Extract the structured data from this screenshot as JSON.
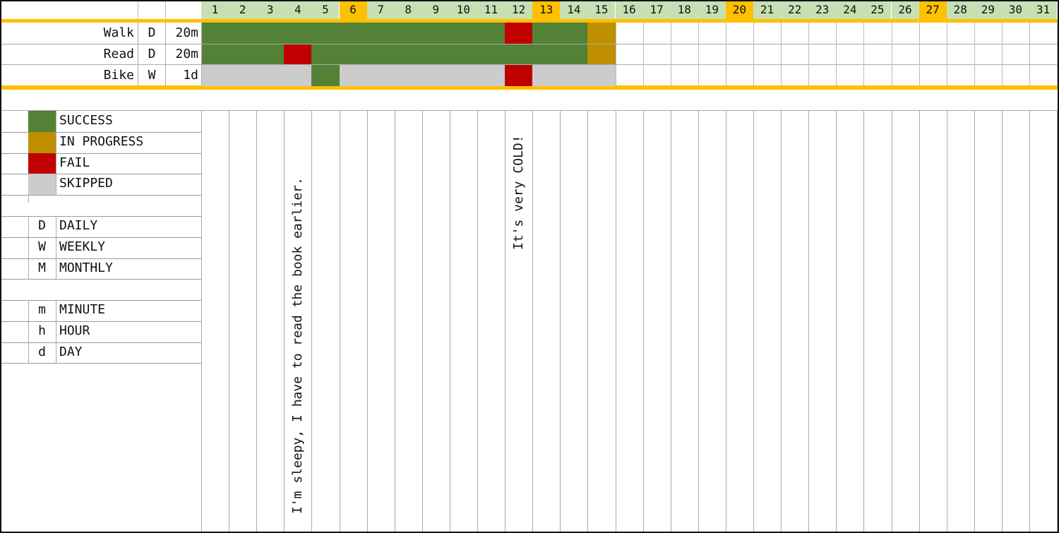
{
  "days": [
    "1",
    "2",
    "3",
    "4",
    "5",
    "6",
    "7",
    "8",
    "9",
    "10",
    "11",
    "12",
    "13",
    "14",
    "15",
    "16",
    "17",
    "18",
    "19",
    "20",
    "21",
    "22",
    "23",
    "24",
    "25",
    "26",
    "27",
    "28",
    "29",
    "30",
    "31"
  ],
  "highlight_days": [
    "6",
    "13",
    "20",
    "27"
  ],
  "colors": {
    "success": "#538135",
    "in_progress": "#bf8f00",
    "fail": "#c00000",
    "skipped": "#cccccc",
    "day_header": "#c6e0b4",
    "day_highlight": "#ffc000",
    "accent_line": "#ffc000"
  },
  "habits": [
    {
      "name": "Walk",
      "freq": "D",
      "goal": "20m",
      "status": [
        "S",
        "S",
        "S",
        "S",
        "S",
        "S",
        "S",
        "S",
        "S",
        "S",
        "S",
        "F",
        "S",
        "S",
        "P",
        "",
        "",
        "",
        "",
        "",
        "",
        "",
        "",
        "",
        "",
        "",
        "",
        "",
        "",
        "",
        ""
      ]
    },
    {
      "name": "Read",
      "freq": "D",
      "goal": "20m",
      "status": [
        "S",
        "S",
        "S",
        "F",
        "S",
        "S",
        "S",
        "S",
        "S",
        "S",
        "S",
        "S",
        "S",
        "S",
        "P",
        "",
        "",
        "",
        "",
        "",
        "",
        "",
        "",
        "",
        "",
        "",
        "",
        "",
        "",
        "",
        ""
      ]
    },
    {
      "name": "Bike",
      "freq": "W",
      "goal": "1d",
      "status": [
        "K",
        "K",
        "K",
        "K",
        "S",
        "K",
        "K",
        "K",
        "K",
        "K",
        "K",
        "F",
        "K",
        "K",
        "K",
        "",
        "",
        "",
        "",
        "",
        "",
        "",
        "",
        "",
        "",
        "",
        "",
        "",
        "",
        "",
        ""
      ]
    }
  ],
  "legend": {
    "status": [
      {
        "key": "success",
        "label": "SUCCESS"
      },
      {
        "key": "in_progress",
        "label": "IN PROGRESS"
      },
      {
        "key": "fail",
        "label": "FAIL"
      },
      {
        "key": "skipped",
        "label": "SKIPPED"
      }
    ],
    "frequency": [
      {
        "code": "D",
        "label": "DAILY"
      },
      {
        "code": "W",
        "label": "WEEKLY"
      },
      {
        "code": "M",
        "label": "MONTHLY"
      }
    ],
    "units": [
      {
        "code": "m",
        "label": "MINUTE"
      },
      {
        "code": "h",
        "label": "HOUR"
      },
      {
        "code": "d",
        "label": "DAY"
      }
    ]
  },
  "notes": [
    {
      "day": "4",
      "text": "I'm sleepy, I have to read the book earlier."
    },
    {
      "day": "12",
      "text": "It's very COLD!"
    }
  ]
}
